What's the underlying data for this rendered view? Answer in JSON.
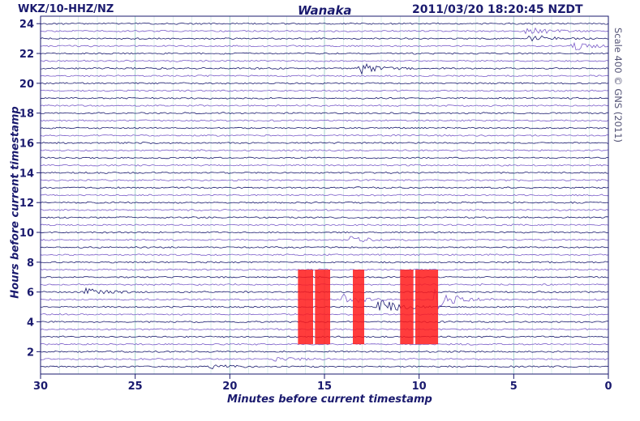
{
  "header": {
    "station": "WKZ/10-HHZ/NZ",
    "place": "Wanaka",
    "timestamp": "2011/03/20  18:20:45 NZDT"
  },
  "credit": "Scale 400 © GNS (2011)",
  "colors": {
    "trace": "#1a1a6e",
    "trace_alt": "#7a5cc8",
    "grid": "#9ccfc9",
    "highlight": "#ff1a1a",
    "axis_text": "#1a1a6e"
  },
  "chart_data": {
    "type": "line",
    "title": "Wanaka",
    "xlabel": "Minutes before current timestamp",
    "ylabel": "Hours before current timestamp",
    "xlim": [
      30,
      0
    ],
    "ylim": [
      0.5,
      24.5
    ],
    "x_ticks": [
      "30",
      "25",
      "20",
      "15",
      "10",
      "5",
      "0"
    ],
    "y_ticks": [
      "2",
      "4",
      "6",
      "8",
      "10",
      "12",
      "14",
      "16",
      "18",
      "20",
      "22",
      "24"
    ],
    "x_tick_values": [
      30,
      25,
      20,
      15,
      10,
      5,
      0
    ],
    "y_tick_values": [
      2,
      4,
      6,
      8,
      10,
      12,
      14,
      16,
      18,
      20,
      22,
      24
    ],
    "trace_interval_hours": 0.5,
    "grid": true,
    "events": [
      {
        "minutes": 13.0,
        "hour": 21.0,
        "amplitude": 0.6
      },
      {
        "minutes": 4.2,
        "hour": 23.5,
        "amplitude": 0.5
      },
      {
        "minutes": 4.0,
        "hour": 23.0,
        "amplitude": 0.4
      },
      {
        "minutes": 1.8,
        "hour": 22.5,
        "amplitude": 0.5
      },
      {
        "minutes": 13.5,
        "hour": 9.5,
        "amplitude": 0.4
      },
      {
        "minutes": 17.5,
        "hour": 1.5,
        "amplitude": 0.3
      },
      {
        "minutes": 21.0,
        "hour": 1.0,
        "amplitude": 0.3
      },
      {
        "minutes": 27.5,
        "hour": 6.0,
        "amplitude": 0.4
      },
      {
        "minutes": 12.0,
        "hour": 5.0,
        "amplitude": 1.0
      },
      {
        "minutes": 9.0,
        "hour": 5.5,
        "amplitude": 1.2
      },
      {
        "minutes": 14.0,
        "hour": 5.5,
        "amplitude": 0.8
      }
    ],
    "highlighted_intervals_minutes": [
      [
        16.4,
        15.6
      ],
      [
        15.5,
        14.7
      ],
      [
        13.5,
        12.9
      ],
      [
        11.0,
        10.3
      ],
      [
        10.2,
        9.0
      ]
    ],
    "highlight_hour_range": [
      2.5,
      7.5
    ]
  }
}
